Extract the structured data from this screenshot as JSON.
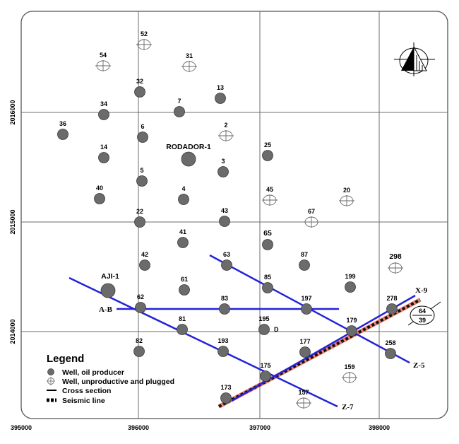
{
  "x_ticks": [
    "395000",
    "396000",
    "397000",
    "398000"
  ],
  "y_ticks": [
    "2016000",
    "2015000",
    "2014000"
  ],
  "wells": [
    {
      "label": "54",
      "status": "unproductive",
      "size": "normal"
    },
    {
      "label": "52",
      "status": "unproductive",
      "size": "normal"
    },
    {
      "label": "31",
      "status": "unproductive",
      "size": "normal"
    },
    {
      "label": "32",
      "status": "producer",
      "size": "normal"
    },
    {
      "label": "13",
      "status": "producer",
      "size": "normal"
    },
    {
      "label": "34",
      "status": "producer",
      "size": "normal"
    },
    {
      "label": "7",
      "status": "producer",
      "size": "normal"
    },
    {
      "label": "36",
      "status": "producer",
      "size": "normal"
    },
    {
      "label": "6",
      "status": "producer",
      "size": "normal"
    },
    {
      "label": "2",
      "status": "unproductive",
      "size": "normal"
    },
    {
      "label": "14",
      "status": "producer",
      "size": "normal"
    },
    {
      "label": "RODADOR-1",
      "status": "producer",
      "size": "large"
    },
    {
      "label": "3",
      "status": "producer",
      "size": "normal"
    },
    {
      "label": "25",
      "status": "producer",
      "size": "normal"
    },
    {
      "label": "5",
      "status": "producer",
      "size": "normal"
    },
    {
      "label": "40",
      "status": "producer",
      "size": "normal"
    },
    {
      "label": "4",
      "status": "producer",
      "size": "normal"
    },
    {
      "label": "45",
      "status": "unproductive",
      "size": "normal"
    },
    {
      "label": "20",
      "status": "unproductive",
      "size": "normal"
    },
    {
      "label": "22",
      "status": "producer",
      "size": "normal"
    },
    {
      "label": "43",
      "status": "producer",
      "size": "normal"
    },
    {
      "label": "67",
      "status": "unproductive",
      "size": "normal"
    },
    {
      "label": "41",
      "status": "producer",
      "size": "normal"
    },
    {
      "label": "65",
      "status": "producer",
      "size": "normal"
    },
    {
      "label": "63",
      "status": "producer",
      "size": "normal"
    },
    {
      "label": "42",
      "status": "producer",
      "size": "normal"
    },
    {
      "label": "87",
      "status": "producer",
      "size": "normal"
    },
    {
      "label": "298",
      "status": "unproductive",
      "size": "normal"
    },
    {
      "label": "AJI-1",
      "status": "producer",
      "size": "large"
    },
    {
      "label": "85",
      "status": "producer",
      "size": "normal"
    },
    {
      "label": "61",
      "status": "producer",
      "size": "normal"
    },
    {
      "label": "199",
      "status": "producer",
      "size": "normal"
    },
    {
      "label": "62",
      "status": "producer",
      "size": "normal"
    },
    {
      "label": "83",
      "status": "producer",
      "size": "normal"
    },
    {
      "label": "197",
      "status": "producer",
      "size": "normal"
    },
    {
      "label": "278",
      "status": "producer",
      "size": "normal"
    },
    {
      "label": "81",
      "status": "producer",
      "size": "normal"
    },
    {
      "label": "195",
      "status": "producer",
      "size": "normal"
    },
    {
      "label": "179",
      "status": "producer",
      "size": "normal"
    },
    {
      "label": "82",
      "status": "producer",
      "size": "normal"
    },
    {
      "label": "193",
      "status": "producer",
      "size": "normal"
    },
    {
      "label": "177",
      "status": "producer",
      "size": "normal"
    },
    {
      "label": "258",
      "status": "producer",
      "size": "normal"
    },
    {
      "label": "175",
      "status": "producer",
      "size": "normal"
    },
    {
      "label": "159",
      "status": "unproductive",
      "size": "normal"
    },
    {
      "label": "173",
      "status": "producer",
      "size": "normal"
    },
    {
      "label": "157",
      "status": "unproductive",
      "size": "normal"
    }
  ],
  "extra_labels": {
    "d_label": "D"
  },
  "cross_sections": [
    {
      "name": "A-B"
    },
    {
      "name": "Z-5"
    },
    {
      "name": "Z-7"
    },
    {
      "name": "X-9"
    }
  ],
  "seismic_line": {
    "label": "64-39",
    "label_top": "64",
    "label_bottom": "39"
  },
  "legend": {
    "title": "Legend",
    "items": [
      {
        "symbol": "producer",
        "text": "Well, oil producer"
      },
      {
        "symbol": "unproductive",
        "text": "Well, unproductive and plugged"
      },
      {
        "symbol": "cross-section",
        "text": "Cross section"
      },
      {
        "symbol": "seismic",
        "text": "Seismic line"
      }
    ]
  },
  "colors": {
    "producer_fill": "#6b6b6b",
    "cross_section": "#2323d8",
    "seismic_dash": "#111111",
    "seismic_fill": "#ee7f6e",
    "grid": "#6d6d6d"
  }
}
